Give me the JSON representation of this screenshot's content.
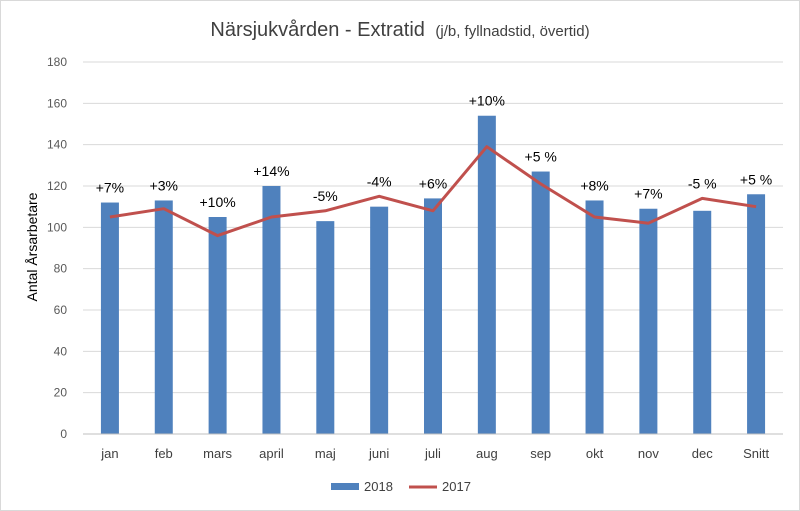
{
  "chart_data": {
    "type": "bar",
    "title": "Närsjukvården - Extratid",
    "subtitle": "(j/b,  fyllnadstid,  övertid)",
    "ylabel": "Antal Årsarbetare",
    "xlabel": "",
    "ylim": [
      0,
      180
    ],
    "yticks": [
      0,
      20,
      40,
      60,
      80,
      100,
      120,
      140,
      160,
      180
    ],
    "grid": true,
    "legend_position": "bottom",
    "categories": [
      "jan",
      "feb",
      "mars",
      "april",
      "maj",
      "juni",
      "juli",
      "aug",
      "sep",
      "okt",
      "nov",
      "dec",
      "Snitt"
    ],
    "series": [
      {
        "name": "2018",
        "type": "bar",
        "color": "#4f81bd",
        "values": [
          112,
          113,
          105,
          120,
          103,
          110,
          114,
          154,
          127,
          113,
          109,
          108,
          116
        ]
      },
      {
        "name": "2017",
        "type": "line",
        "color": "#c0504d",
        "values": [
          105,
          109,
          96,
          105,
          108,
          115,
          108,
          139,
          121,
          105,
          102,
          114,
          110
        ]
      }
    ],
    "data_labels": [
      "+7%",
      "+3%",
      "+10%",
      "+14%",
      "-5%",
      "-4%",
      "+6%",
      "+10%",
      "+5 %",
      "+8%",
      "+7%",
      "-5 %",
      "+5 %"
    ]
  }
}
